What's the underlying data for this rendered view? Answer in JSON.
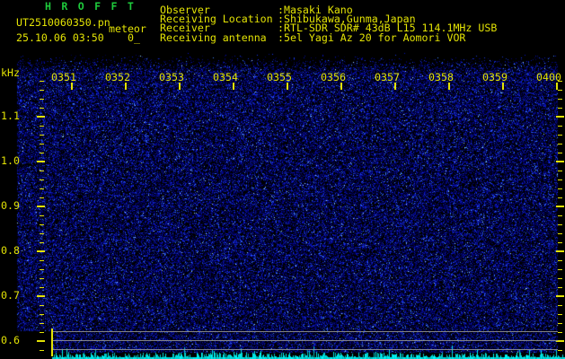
{
  "app": {
    "title": "HROFFT"
  },
  "header": {
    "filename": "UT2510060350.pn",
    "station": "meteor",
    "timestamp": "25.10.06 03:50",
    "counter": "0_",
    "info": [
      {
        "label": "Observer",
        "value": ":Masaki Kano"
      },
      {
        "label": "Receiving Location",
        "value": ":Shibukawa,Gunma,Japan"
      },
      {
        "label": "Receiver",
        "value": ":RTL-SDR SDR# 43dB L15 114.1MHz USB"
      },
      {
        "label": "Receiving antenna",
        "value": ":5el Yagi Az 20 for Aomori VOR"
      }
    ]
  },
  "chart_data": {
    "type": "heatmap",
    "description": "10-minute radio meteor observation spectrogram; field shows uniform dark-blue background noise with no meteor echo traces",
    "x_ticks": [
      "0351",
      "0352",
      "0353",
      "0354",
      "0355",
      "0356",
      "0357",
      "0358",
      "0359",
      "0400"
    ],
    "ylabel": "kHz",
    "y_ticks": [
      "1.1",
      "1.0",
      "0.9",
      "0.8",
      "0.7",
      "0.6"
    ],
    "y_range_khz": [
      0.58,
      1.24
    ],
    "level_marker_lines_khz": [
      0.62,
      0.6,
      0.58
    ],
    "bottom_trace": "cyan signal-level trace along bottom edge, flat noise floor",
    "grid": "off",
    "legend": "none"
  },
  "colors": {
    "background": "#000000",
    "title_green": "#1ecb3c",
    "text_yellow": "#e3e304",
    "marker_grey": "#9a9a9a",
    "trace_cyan": "#00dcdc",
    "noise_blue": "#2020b8"
  }
}
